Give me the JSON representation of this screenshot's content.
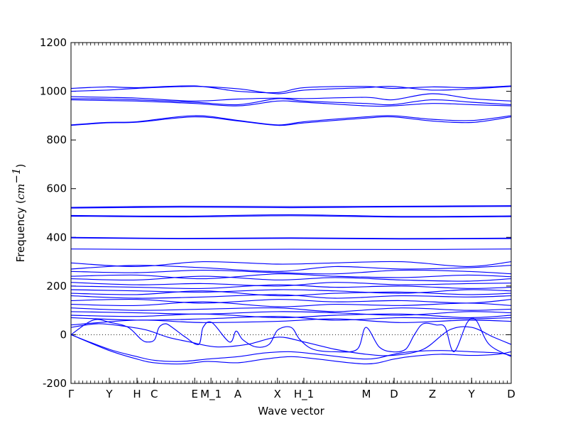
{
  "chart_data": {
    "type": "line",
    "title": "",
    "xlabel": "Wave vector",
    "ylabel": {
      "prefix": "Frequency (",
      "unit": "cm",
      "exponent": "−1",
      "suffix": ")"
    },
    "ylim": [
      -200,
      1200
    ],
    "yticks": [
      -200,
      0,
      200,
      400,
      600,
      800,
      1000,
      1200
    ],
    "xlim": [
      0,
      1
    ],
    "kpoints": [
      {
        "label": "Γ",
        "x": 0.0
      },
      {
        "label": "Y",
        "x": 0.087
      },
      {
        "label": "H",
        "x": 0.15
      },
      {
        "label": "C",
        "x": 0.189
      },
      {
        "label": "E",
        "x": 0.281
      },
      {
        "label": "M_1",
        "x": 0.318
      },
      {
        "label": "A",
        "x": 0.379
      },
      {
        "label": "X",
        "x": 0.469
      },
      {
        "label": "H_1",
        "x": 0.529
      },
      {
        "label": "M",
        "x": 0.671
      },
      {
        "label": "D",
        "x": 0.734
      },
      {
        "label": "Z",
        "x": 0.821
      },
      {
        "label": "Y",
        "x": 0.91
      },
      {
        "label": "D",
        "x": 1.0
      }
    ],
    "zero_line": true,
    "line_color": "#0000ff",
    "series": [
      {
        "x": [
          0,
          0.08,
          0.15,
          0.28,
          0.38,
          0.47,
          0.53,
          0.67,
          0.73,
          0.82,
          0.91,
          1
        ],
        "y": [
          1012,
          1018,
          1015,
          1022,
          1000,
          995,
          1015,
          1020,
          1012,
          1018,
          1015,
          1022
        ]
      },
      {
        "x": [
          0,
          0.08,
          0.15,
          0.28,
          0.38,
          0.47,
          0.53,
          0.67,
          0.73,
          0.82,
          0.91,
          1
        ],
        "y": [
          1000,
          1005,
          1012,
          1020,
          1010,
          990,
          1005,
          1015,
          1020,
          1005,
          1010,
          1020
        ]
      },
      {
        "x": [
          0,
          0.08,
          0.15,
          0.28,
          0.38,
          0.47,
          0.53,
          0.67,
          0.73,
          0.82,
          0.91,
          1
        ],
        "y": [
          978,
          975,
          972,
          960,
          968,
          972,
          970,
          975,
          965,
          990,
          970,
          960
        ]
      },
      {
        "x": [
          0,
          0.08,
          0.15,
          0.28,
          0.38,
          0.47,
          0.53,
          0.67,
          0.73,
          0.82,
          0.91,
          1
        ],
        "y": [
          970,
          968,
          965,
          955,
          945,
          970,
          960,
          950,
          945,
          965,
          955,
          945
        ]
      },
      {
        "x": [
          0,
          0.08,
          0.15,
          0.28,
          0.38,
          0.47,
          0.53,
          0.67,
          0.73,
          0.82,
          0.91,
          1
        ],
        "y": [
          965,
          962,
          960,
          950,
          940,
          960,
          955,
          940,
          940,
          950,
          945,
          940
        ]
      },
      {
        "x": [
          0,
          0.08,
          0.15,
          0.28,
          0.38,
          0.47,
          0.53,
          0.67,
          0.73,
          0.82,
          0.91,
          1
        ],
        "y": [
          862,
          872,
          875,
          900,
          880,
          862,
          875,
          895,
          900,
          885,
          880,
          900
        ]
      },
      {
        "x": [
          0,
          0.08,
          0.15,
          0.28,
          0.38,
          0.47,
          0.53,
          0.67,
          0.73,
          0.82,
          0.91,
          1
        ],
        "y": [
          860,
          870,
          873,
          895,
          878,
          860,
          870,
          890,
          895,
          878,
          872,
          895
        ]
      },
      {
        "x": [
          0,
          0.25,
          0.5,
          0.75,
          1
        ],
        "y": [
          523,
          528,
          526,
          528,
          530
        ]
      },
      {
        "x": [
          0,
          0.25,
          0.5,
          0.75,
          1
        ],
        "y": [
          520,
          524,
          522,
          525,
          527
        ]
      },
      {
        "x": [
          0,
          0.25,
          0.5,
          0.75,
          1
        ],
        "y": [
          490,
          487,
          493,
          486,
          488
        ]
      },
      {
        "x": [
          0,
          0.25,
          0.5,
          0.75,
          1
        ],
        "y": [
          487,
          484,
          489,
          483,
          485
        ]
      },
      {
        "x": [
          0,
          0.25,
          0.5,
          0.75,
          1
        ],
        "y": [
          400,
          396,
          398,
          395,
          397
        ]
      },
      {
        "x": [
          0,
          0.25,
          0.5,
          0.75,
          1
        ],
        "y": [
          398,
          394,
          396,
          393,
          395
        ]
      },
      {
        "x": [
          0,
          0.25,
          0.5,
          0.75,
          1
        ],
        "y": [
          352,
          350,
          351,
          350,
          352
        ]
      },
      {
        "x": [
          0,
          0.15,
          0.3,
          0.47,
          0.6,
          0.75,
          0.9,
          1
        ],
        "y": [
          295,
          280,
          300,
          290,
          295,
          300,
          280,
          300
        ]
      },
      {
        "x": [
          0,
          0.15,
          0.3,
          0.47,
          0.6,
          0.75,
          0.9,
          1
        ],
        "y": [
          270,
          285,
          275,
          260,
          280,
          270,
          275,
          285
        ]
      },
      {
        "x": [
          0,
          0.15,
          0.3,
          0.47,
          0.6,
          0.75,
          0.9,
          1
        ],
        "y": [
          260,
          255,
          265,
          255,
          250,
          265,
          260,
          250
        ]
      },
      {
        "x": [
          0,
          0.15,
          0.3,
          0.47,
          0.6,
          0.75,
          0.9,
          1
        ],
        "y": [
          240,
          245,
          230,
          250,
          240,
          235,
          245,
          238
        ]
      },
      {
        "x": [
          0,
          0.15,
          0.3,
          0.47,
          0.6,
          0.75,
          0.9,
          1
        ],
        "y": [
          230,
          225,
          240,
          225,
          235,
          225,
          220,
          230
        ]
      },
      {
        "x": [
          0,
          0.15,
          0.3,
          0.47,
          0.6,
          0.75,
          0.9,
          1
        ],
        "y": [
          215,
          205,
          210,
          200,
          215,
          205,
          210,
          212
        ]
      },
      {
        "x": [
          0,
          0.15,
          0.3,
          0.47,
          0.6,
          0.75,
          0.9,
          1
        ],
        "y": [
          200,
          195,
          190,
          205,
          195,
          200,
          190,
          195
        ]
      },
      {
        "x": [
          0,
          0.15,
          0.3,
          0.47,
          0.6,
          0.75,
          0.9,
          1
        ],
        "y": [
          185,
          180,
          175,
          185,
          180,
          170,
          185,
          180
        ]
      },
      {
        "x": [
          0,
          0.15,
          0.3,
          0.47,
          0.6,
          0.75,
          0.9,
          1
        ],
        "y": [
          170,
          165,
          180,
          160,
          170,
          175,
          165,
          170
        ]
      },
      {
        "x": [
          0,
          0.15,
          0.3,
          0.47,
          0.6,
          0.75,
          0.9,
          1
        ],
        "y": [
          160,
          150,
          155,
          165,
          150,
          160,
          155,
          160
        ]
      },
      {
        "x": [
          0,
          0.15,
          0.3,
          0.47,
          0.6,
          0.75,
          0.9,
          1
        ],
        "y": [
          140,
          145,
          130,
          145,
          135,
          140,
          130,
          145
        ]
      },
      {
        "x": [
          0,
          0.15,
          0.3,
          0.47,
          0.6,
          0.75,
          0.9,
          1
        ],
        "y": [
          125,
          120,
          135,
          115,
          125,
          120,
          130,
          120
        ]
      },
      {
        "x": [
          0,
          0.15,
          0.3,
          0.47,
          0.6,
          0.75,
          0.9,
          1
        ],
        "y": [
          110,
          100,
          105,
          110,
          95,
          110,
          100,
          105
        ]
      },
      {
        "x": [
          0,
          0.15,
          0.3,
          0.47,
          0.6,
          0.75,
          0.9,
          1
        ],
        "y": [
          95,
          90,
          85,
          95,
          90,
          80,
          95,
          90
        ]
      },
      {
        "x": [
          0,
          0.15,
          0.3,
          0.47,
          0.6,
          0.75,
          0.9,
          1
        ],
        "y": [
          80,
          75,
          85,
          70,
          80,
          85,
          70,
          80
        ]
      },
      {
        "x": [
          0,
          0.15,
          0.3,
          0.47,
          0.6,
          0.75,
          0.9,
          1
        ],
        "y": [
          70,
          60,
          65,
          75,
          60,
          70,
          65,
          70
        ]
      },
      {
        "x": [
          0,
          0.15,
          0.3,
          0.47,
          0.6,
          0.75,
          0.9,
          1
        ],
        "y": [
          40,
          60,
          50,
          55,
          65,
          50,
          60,
          55
        ]
      },
      {
        "x": [
          0,
          0.087,
          0.15,
          0.189,
          0.25,
          0.31,
          0.379,
          0.44,
          0.5,
          0.56,
          0.671,
          0.734,
          0.77,
          0.84,
          0.91,
          0.97,
          1
        ],
        "y": [
          0,
          -65,
          -100,
          -115,
          -120,
          -110,
          -115,
          -100,
          -90,
          -100,
          -120,
          -100,
          -90,
          -80,
          -85,
          -80,
          -70
        ]
      },
      {
        "x": [
          0,
          0.087,
          0.15,
          0.189,
          0.25,
          0.31,
          0.379,
          0.44,
          0.5,
          0.56,
          0.671,
          0.734,
          0.77,
          0.84,
          0.91,
          0.97,
          1
        ],
        "y": [
          0,
          -60,
          -90,
          -105,
          -110,
          -100,
          -90,
          -75,
          -70,
          -80,
          -100,
          -80,
          -70,
          -65,
          -70,
          -75,
          -85
        ]
      },
      {
        "x": [
          0,
          0.05,
          0.09,
          0.13,
          0.16,
          0.175,
          0.19,
          0.2,
          0.215,
          0.23,
          0.26,
          0.29,
          0.3,
          0.32,
          0.36,
          0.375,
          0.39,
          0.42,
          0.45,
          0.47,
          0.5,
          0.52,
          0.55,
          0.6,
          0.65,
          0.67,
          0.7,
          0.73,
          0.76,
          0.78,
          0.8,
          0.83,
          0.85,
          0.87,
          0.9,
          0.92,
          0.95,
          1
        ],
        "y": [
          0,
          60,
          50,
          30,
          -20,
          -30,
          -20,
          30,
          45,
          30,
          -10,
          -40,
          30,
          50,
          -30,
          15,
          -20,
          -50,
          -40,
          20,
          30,
          -20,
          -60,
          -70,
          -60,
          30,
          -50,
          -70,
          -60,
          0,
          45,
          40,
          30,
          -70,
          50,
          60,
          -40,
          -90
        ]
      },
      {
        "x": [
          0,
          0.06,
          0.12,
          0.17,
          0.22,
          0.27,
          0.33,
          0.4,
          0.47,
          0.53,
          0.6,
          0.67,
          0.73,
          0.8,
          0.86,
          0.91,
          0.96,
          1
        ],
        "y": [
          30,
          45,
          35,
          20,
          -10,
          -30,
          -50,
          -40,
          -10,
          -30,
          -60,
          -80,
          -85,
          -60,
          20,
          30,
          -10,
          -40
        ]
      }
    ]
  }
}
